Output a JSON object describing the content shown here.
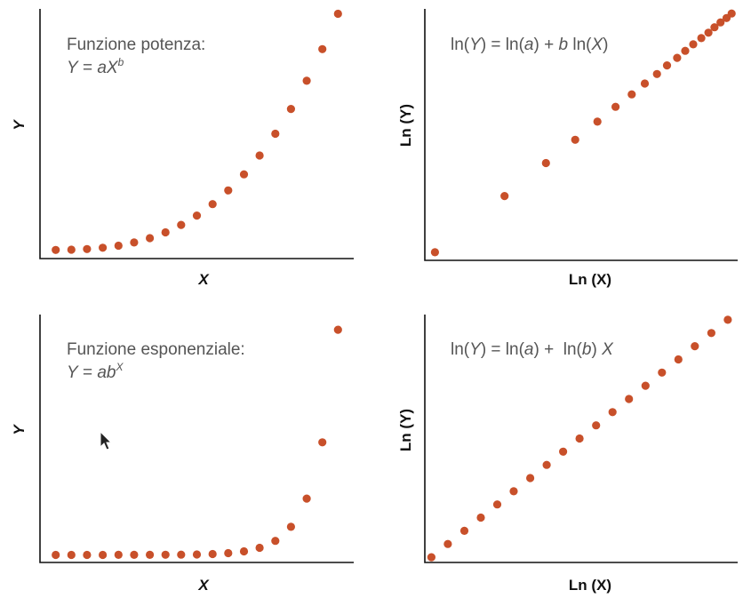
{
  "colors": {
    "points": "#c8502a",
    "axes": "#111111",
    "annotation": "#555555"
  },
  "chart_data": [
    {
      "type": "scatter",
      "title": "",
      "annotation": {
        "line1": "Funzione potenza:",
        "eq_lhs": "Y",
        "eq_eq": " = ",
        "eq_a": "aX",
        "eq_sup": "b"
      },
      "xlabel": "X",
      "ylabel": "Y",
      "grid": false,
      "x": [
        1,
        2,
        3,
        4,
        5,
        6,
        7,
        8,
        9,
        10,
        11,
        12,
        13,
        14,
        15,
        16,
        17,
        18,
        19
      ],
      "y": [
        1,
        8,
        27,
        64,
        125,
        216,
        343,
        512,
        729,
        1000,
        1331,
        1728,
        2197,
        2744,
        3375,
        4096,
        4913,
        5832,
        6859
      ],
      "xlim": [
        0,
        20
      ],
      "ylim": [
        -250,
        7000
      ]
    },
    {
      "type": "scatter",
      "title": "",
      "annotation": {
        "parts": [
          "ln(",
          "Y",
          ") = ln(",
          "a",
          ") + ",
          "b",
          " ln(",
          "X",
          ")"
        ]
      },
      "xlabel": "Ln (X)",
      "ylabel": "Ln (Y)",
      "grid": false,
      "x": [
        0.0,
        0.69,
        1.1,
        1.39,
        1.61,
        1.79,
        1.95,
        2.08,
        2.2,
        2.3,
        2.4,
        2.48,
        2.56,
        2.64,
        2.71,
        2.77,
        2.83,
        2.89,
        2.94
      ],
      "y": [
        0.0,
        2.08,
        3.3,
        4.16,
        4.83,
        5.38,
        5.84,
        6.24,
        6.59,
        6.91,
        7.19,
        7.45,
        7.69,
        7.92,
        8.12,
        8.32,
        8.5,
        8.66,
        8.83
      ],
      "xlim": [
        -0.1,
        3.0
      ],
      "ylim": [
        -0.3,
        9.0
      ]
    },
    {
      "type": "scatter",
      "title": "",
      "annotation": {
        "line1": "Funzione esponenziale:",
        "eq_lhs": "Y",
        "eq_eq": " = ",
        "eq_a": "ab",
        "eq_sup": "X"
      },
      "xlabel": "X",
      "ylabel": "Y",
      "grid": false,
      "x": [
        1,
        2,
        3,
        4,
        5,
        6,
        7,
        8,
        9,
        10,
        11,
        12,
        13,
        14,
        15,
        16,
        17,
        18,
        19
      ],
      "y": [
        0.0007,
        0.0014,
        0.0027,
        0.0054,
        0.011,
        0.022,
        0.043,
        0.087,
        0.17,
        0.35,
        0.7,
        1.4,
        2.8,
        5.6,
        11.1,
        22.2,
        44.5,
        89,
        178
      ],
      "xlim": [
        0,
        20
      ],
      "ylim": [
        -6,
        190
      ]
    },
    {
      "type": "scatter",
      "title": "",
      "annotation": {
        "parts": [
          "ln(",
          "Y",
          ") = ln(",
          "a",
          ") +  ln(",
          "b",
          ") ",
          "X"
        ]
      },
      "xlabel": "Ln (X)",
      "ylabel": "Ln (Y)",
      "grid": false,
      "x": [
        1,
        2,
        3,
        4,
        5,
        6,
        7,
        8,
        9,
        10,
        11,
        12,
        13,
        14,
        15,
        16,
        17,
        18,
        19
      ],
      "y": [
        0,
        1,
        2,
        3,
        4,
        5,
        6,
        7,
        8,
        9,
        10,
        11,
        12,
        13,
        14,
        15,
        16,
        17,
        18
      ],
      "xlim": [
        0.6,
        19.6
      ],
      "ylim": [
        -0.4,
        18.4
      ]
    }
  ]
}
